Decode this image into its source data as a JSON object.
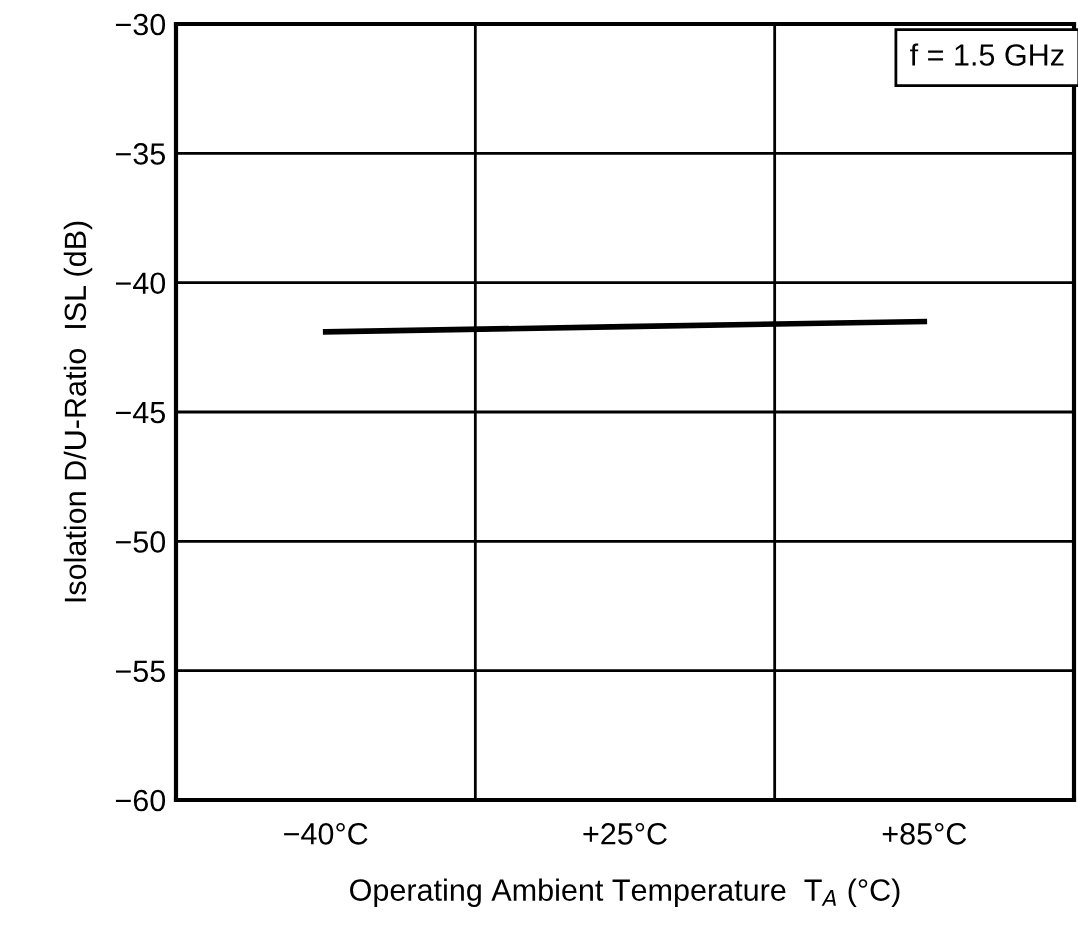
{
  "chart_data": {
    "type": "line",
    "xlabel": "Operating Ambient Temperature  T$_{A}$ (°C)",
    "ylabel": "Isolation D/U-Ratio  ISL (dB)",
    "categories": [
      "−40°C",
      "+25°C",
      "+85°C"
    ],
    "series": [
      {
        "color": "#000000",
        "values": [
          -41.9,
          -41.7,
          -41.5
        ]
      }
    ],
    "ylim": [
      -60,
      -30
    ],
    "yticks": [
      {
        "value": -60,
        "label": "−60"
      },
      {
        "value": -55,
        "label": "−55"
      },
      {
        "value": -50,
        "label": "−50"
      },
      {
        "value": -45,
        "label": "−45"
      },
      {
        "value": -40,
        "label": "−40"
      },
      {
        "value": -35,
        "label": "−35"
      },
      {
        "value": -30,
        "label": "−30"
      }
    ],
    "grid": true,
    "marker": "none",
    "line_style": "solid",
    "annotations": [
      "f = 1.5 GHz"
    ]
  }
}
